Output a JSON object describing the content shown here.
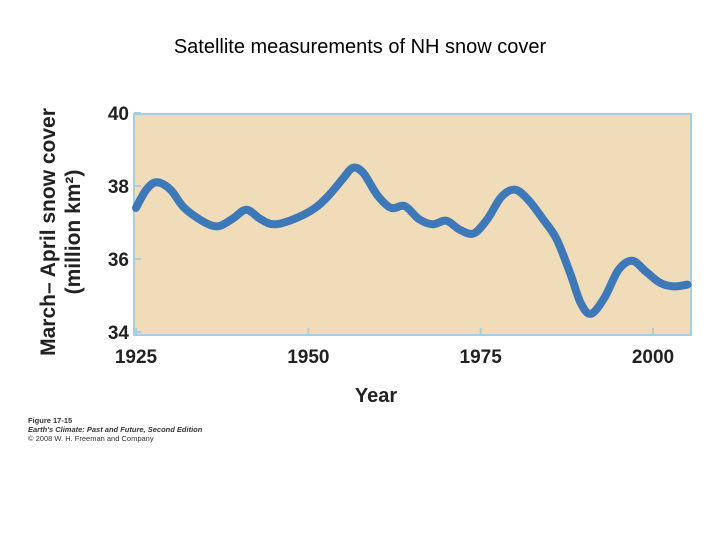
{
  "slide": {
    "title": "Satellite measurements of NH snow cover"
  },
  "chart_data": {
    "type": "line",
    "title": "",
    "xlabel": "Year",
    "ylabel_line1": "March– April snow cover",
    "ylabel_line2": "(million km²)",
    "xlim": [
      1925,
      2005
    ],
    "ylim": [
      34,
      40
    ],
    "xticks": [
      1925,
      1950,
      1975,
      2000
    ],
    "xtick_labels": [
      "1925",
      "1950",
      "1975",
      "2000"
    ],
    "yticks": [
      34,
      36,
      38,
      40
    ],
    "ytick_labels": [
      "34",
      "36",
      "38",
      "40"
    ],
    "grid": false,
    "background_color": "#f0dcb9",
    "line_color": "#2e6fb8",
    "series": [
      {
        "name": "NH snow cover",
        "x": [
          1925,
          1926.5,
          1928,
          1930,
          1932,
          1935,
          1937,
          1939,
          1941,
          1943,
          1945,
          1948,
          1951,
          1953,
          1955,
          1956.5,
          1958,
          1960,
          1962,
          1964,
          1966,
          1968,
          1970,
          1972,
          1974,
          1976,
          1978,
          1980,
          1982,
          1984,
          1986,
          1988,
          1989.5,
          1991,
          1993,
          1995,
          1997,
          1999,
          2001,
          2003,
          2005
        ],
        "values": [
          37.4,
          37.9,
          38.1,
          37.9,
          37.4,
          37.0,
          36.9,
          37.1,
          37.35,
          37.1,
          36.95,
          37.1,
          37.4,
          37.75,
          38.2,
          38.5,
          38.35,
          37.75,
          37.4,
          37.45,
          37.1,
          36.95,
          37.05,
          36.8,
          36.7,
          37.1,
          37.7,
          37.9,
          37.6,
          37.1,
          36.55,
          35.6,
          34.8,
          34.5,
          34.95,
          35.7,
          35.95,
          35.65,
          35.35,
          35.25,
          35.3
        ]
      }
    ]
  },
  "caption": {
    "figure": "Figure 17-15",
    "book": "Earth's Climate: Past and Future, Second Edition",
    "copyright": "© 2008 W. H. Freeman and Company"
  }
}
